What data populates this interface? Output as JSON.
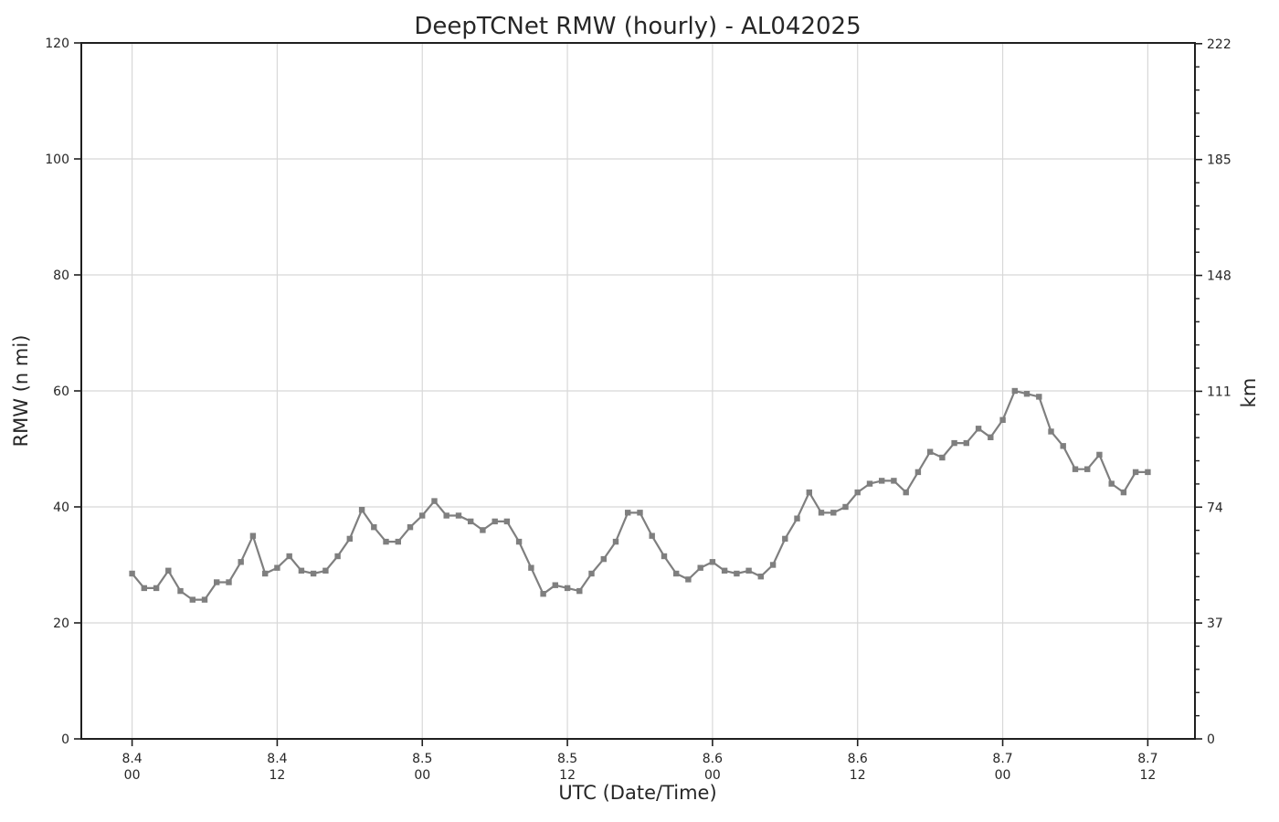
{
  "chart_data": {
    "type": "line",
    "title": "DeepTCNet RMW (hourly) - AL042025",
    "xlabel": "UTC (Date/Time)",
    "ylabel_left": "RMW (n mi)",
    "ylabel_right": "km",
    "ylim_left": [
      0,
      120
    ],
    "yticks_left": [
      "0",
      "20",
      "40",
      "60",
      "80",
      "100",
      "120"
    ],
    "right_axis": {
      "unit": "km",
      "ticks": [
        {
          "km": 0,
          "label": "0"
        },
        {
          "km": 37,
          "label": "37"
        },
        {
          "km": 74,
          "label": "74"
        },
        {
          "km": 111,
          "label": "111"
        },
        {
          "km": 148,
          "label": "148"
        },
        {
          "km": 185,
          "label": "185"
        },
        {
          "km": 222,
          "label": "222"
        }
      ],
      "km_max": 222.24,
      "minor_divisions": 5
    },
    "grid": true,
    "legend": "none",
    "xticks": [
      {
        "hour": 0,
        "line1": "8.4",
        "line2": "00"
      },
      {
        "hour": 12,
        "line1": "8.4",
        "line2": "12"
      },
      {
        "hour": 24,
        "line1": "8.5",
        "line2": "00"
      },
      {
        "hour": 36,
        "line1": "8.5",
        "line2": "12"
      },
      {
        "hour": 48,
        "line1": "8.6",
        "line2": "00"
      },
      {
        "hour": 60,
        "line1": "8.6",
        "line2": "12"
      },
      {
        "hour": 72,
        "line1": "8.7",
        "line2": "00"
      },
      {
        "hour": 84,
        "line1": "8.7",
        "line2": "12"
      }
    ],
    "xlim_hours": [
      -4.2,
      87.9
    ],
    "series": [
      {
        "name": "RMW (n mi) hourly",
        "start_hour": 0,
        "step_hours": 1,
        "marker": "square",
        "values": [
          28.5,
          26,
          26,
          29,
          25.5,
          24,
          24,
          27,
          27,
          30.5,
          35,
          28.5,
          29.5,
          31.5,
          29,
          28.5,
          29,
          31.5,
          34.5,
          39.5,
          36.5,
          34,
          34,
          36.5,
          38.5,
          41,
          38.5,
          38.5,
          37.5,
          36,
          37.5,
          37.5,
          34,
          29.5,
          25,
          26.5,
          26,
          25.5,
          28.5,
          31,
          34,
          39,
          39,
          35,
          31.5,
          28.5,
          27.5,
          29.5,
          30.5,
          29,
          28.5,
          29,
          28,
          30,
          34.5,
          38,
          42.5,
          39,
          39,
          40,
          42.5,
          44,
          44.5,
          44.5,
          42.5,
          46,
          49.5,
          48.5,
          51,
          51,
          53.5,
          52,
          55,
          60,
          59.5,
          59,
          53,
          50.5,
          46.5,
          46.5,
          49,
          44,
          42.5,
          46,
          46
        ]
      }
    ],
    "colors": {
      "line": "#7f7f7f",
      "marker": "#7f7f7f",
      "grid": "#d8d8d8",
      "spine": "#1f1f1f",
      "text": "#262626"
    }
  }
}
